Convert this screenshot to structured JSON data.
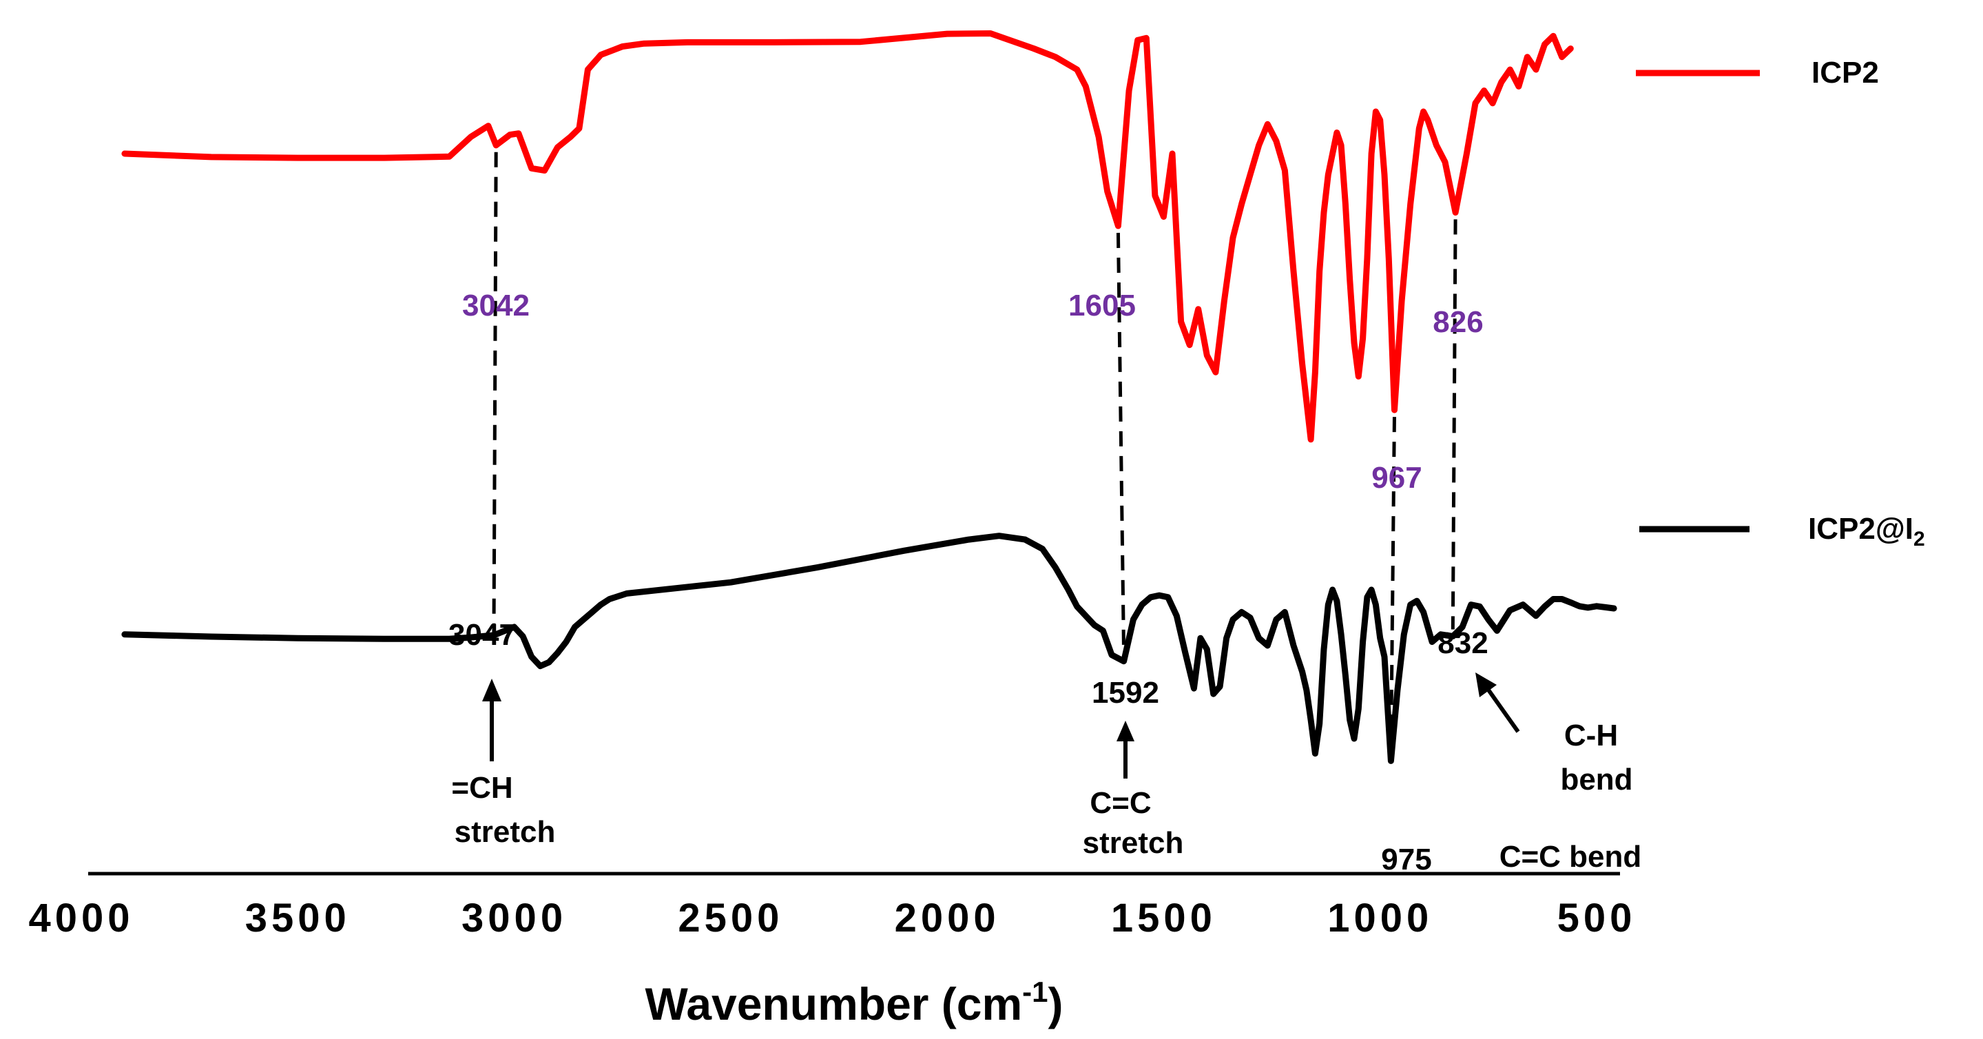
{
  "chart_data": {
    "type": "line",
    "title": "",
    "xlabel": "Wavenumber (cm",
    "xlabel_sup": "-1",
    "xlabel_close": ")",
    "ylabel": "",
    "xlim": [
      4000,
      500
    ],
    "x_reversed": true,
    "xticks": [
      4000,
      3500,
      3000,
      2500,
      2000,
      1500,
      1000,
      500
    ],
    "grid": false,
    "colors": {
      "ICP2": "#ff0000",
      "ICP2@I2": "#000000",
      "annotation_purple": "#7030a0"
    },
    "legend": [
      {
        "name": "ICP2",
        "color": "#ff0000"
      },
      {
        "name": "ICP2@I",
        "sub": "2",
        "color": "#000000"
      }
    ],
    "series": [
      {
        "name": "ICP2",
        "color": "#ff0000",
        "x": [
          3900,
          3700,
          3500,
          3300,
          3150,
          3100,
          3060,
          3042,
          3010,
          2990,
          2960,
          2930,
          2900,
          2870,
          2850,
          2830,
          2800,
          2750,
          2700,
          2600,
          2400,
          2200,
          2000,
          1900,
          1800,
          1750,
          1700,
          1680,
          1650,
          1630,
          1605,
          1580,
          1560,
          1540,
          1520,
          1500,
          1480,
          1460,
          1440,
          1420,
          1400,
          1380,
          1360,
          1340,
          1320,
          1300,
          1280,
          1260,
          1240,
          1220,
          1200,
          1180,
          1160,
          1150,
          1140,
          1130,
          1120,
          1110,
          1100,
          1090,
          1080,
          1070,
          1060,
          1050,
          1040,
          1030,
          1020,
          1010,
          1000,
          990,
          980,
          967,
          950,
          930,
          910,
          900,
          890,
          870,
          850,
          826,
          800,
          780,
          760,
          740,
          720,
          700,
          680,
          660,
          640,
          620,
          600,
          580,
          560
        ],
        "y": [
          0.7,
          0.692,
          0.69,
          0.69,
          0.693,
          0.74,
          0.766,
          0.72,
          0.745,
          0.748,
          0.665,
          0.66,
          0.715,
          0.74,
          0.76,
          0.9,
          0.935,
          0.955,
          0.962,
          0.965,
          0.965,
          0.966,
          0.985,
          0.986,
          0.95,
          0.93,
          0.9,
          0.86,
          0.74,
          0.61,
          0.528,
          0.85,
          0.97,
          0.975,
          0.6,
          0.55,
          0.7,
          0.3,
          0.245,
          0.33,
          0.22,
          0.18,
          0.35,
          0.5,
          0.58,
          0.65,
          0.72,
          0.77,
          0.73,
          0.66,
          0.42,
          0.2,
          0.02,
          0.18,
          0.42,
          0.56,
          0.65,
          0.7,
          0.75,
          0.72,
          0.58,
          0.4,
          0.25,
          0.17,
          0.26,
          0.45,
          0.7,
          0.8,
          0.78,
          0.65,
          0.45,
          0.09,
          0.35,
          0.58,
          0.76,
          0.8,
          0.78,
          0.72,
          0.68,
          0.56,
          0.7,
          0.82,
          0.85,
          0.82,
          0.87,
          0.9,
          0.86,
          0.93,
          0.9,
          0.96,
          0.98,
          0.93,
          0.95
        ]
      },
      {
        "name": "ICP2@I2",
        "color": "#000000",
        "x": [
          3900,
          3700,
          3500,
          3300,
          3150,
          3100,
          3047,
          3000,
          2980,
          2960,
          2940,
          2920,
          2900,
          2880,
          2860,
          2840,
          2820,
          2800,
          2780,
          2740,
          2700,
          2500,
          2300,
          2100,
          1950,
          1880,
          1820,
          1780,
          1750,
          1720,
          1700,
          1680,
          1660,
          1640,
          1620,
          1592,
          1570,
          1550,
          1530,
          1510,
          1490,
          1470,
          1450,
          1430,
          1415,
          1400,
          1385,
          1370,
          1355,
          1340,
          1320,
          1300,
          1280,
          1260,
          1240,
          1220,
          1200,
          1180,
          1170,
          1160,
          1150,
          1140,
          1130,
          1120,
          1110,
          1100,
          1090,
          1080,
          1070,
          1060,
          1050,
          1040,
          1030,
          1020,
          1010,
          1000,
          990,
          975,
          960,
          945,
          930,
          915,
          900,
          880,
          860,
          832,
          810,
          790,
          770,
          750,
          730,
          700,
          670,
          640,
          620,
          600,
          580,
          560,
          540,
          520,
          500,
          480,
          460
        ],
        "y": [
          0.48,
          0.474,
          0.47,
          0.468,
          0.468,
          0.472,
          0.478,
          0.5,
          0.475,
          0.42,
          0.395,
          0.405,
          0.43,
          0.46,
          0.5,
          0.52,
          0.54,
          0.56,
          0.575,
          0.59,
          0.595,
          0.62,
          0.66,
          0.705,
          0.735,
          0.745,
          0.735,
          0.71,
          0.66,
          0.6,
          0.555,
          0.53,
          0.505,
          0.49,
          0.425,
          0.408,
          0.52,
          0.56,
          0.58,
          0.585,
          0.58,
          0.53,
          0.43,
          0.335,
          0.47,
          0.44,
          0.32,
          0.34,
          0.47,
          0.52,
          0.54,
          0.525,
          0.47,
          0.45,
          0.52,
          0.54,
          0.45,
          0.38,
          0.33,
          0.25,
          0.16,
          0.24,
          0.44,
          0.56,
          0.6,
          0.57,
          0.48,
          0.37,
          0.25,
          0.2,
          0.28,
          0.46,
          0.58,
          0.6,
          0.56,
          0.47,
          0.42,
          0.14,
          0.33,
          0.48,
          0.56,
          0.57,
          0.54,
          0.46,
          0.48,
          0.475,
          0.5,
          0.56,
          0.555,
          0.52,
          0.49,
          0.545,
          0.56,
          0.53,
          0.555,
          0.575,
          0.575,
          0.566,
          0.556,
          0.552,
          0.556,
          0.553,
          0.55
        ]
      }
    ],
    "annotations_top": [
      {
        "label": "3042",
        "x": 3042
      },
      {
        "label": "1605",
        "x": 1605
      },
      {
        "label": "967",
        "x": 967
      },
      {
        "label": "826",
        "x": 826
      }
    ],
    "annotations_bottom": [
      {
        "label": "3047",
        "x": 3047
      },
      {
        "label": "1592",
        "x": 1592
      },
      {
        "label": "975",
        "x": 975
      },
      {
        "label": "832",
        "x": 832
      }
    ],
    "assignments": [
      {
        "line1": "=CH",
        "line2": "stretch"
      },
      {
        "line1": "C=C",
        "line2": "stretch"
      },
      {
        "line1": "C-H",
        "line2": "bend"
      },
      {
        "line1": "C=C bend"
      }
    ]
  }
}
